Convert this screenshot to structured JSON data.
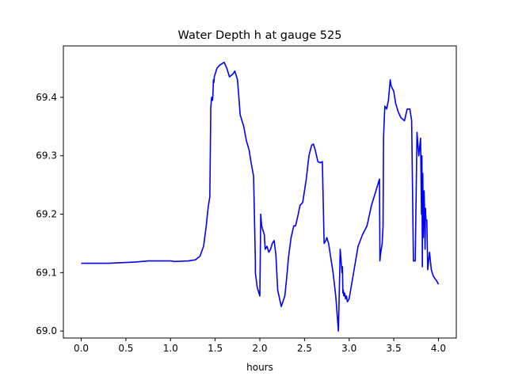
{
  "chart_data": {
    "type": "line",
    "title": "Water Depth h at gauge 525",
    "xlabel": "hours",
    "ylabel": "",
    "xlim": [
      -0.2,
      4.2
    ],
    "ylim": [
      68.988,
      69.488
    ],
    "xticks": [
      {
        "value": 0.0,
        "label": "0.0"
      },
      {
        "value": 0.5,
        "label": "0.5"
      },
      {
        "value": 1.0,
        "label": "1.0"
      },
      {
        "value": 1.5,
        "label": "1.5"
      },
      {
        "value": 2.0,
        "label": "2.0"
      },
      {
        "value": 2.5,
        "label": "2.5"
      },
      {
        "value": 3.0,
        "label": "3.0"
      },
      {
        "value": 3.5,
        "label": "3.5"
      },
      {
        "value": 4.0,
        "label": "4.0"
      }
    ],
    "yticks": [
      {
        "value": 69.0,
        "label": "69.0"
      },
      {
        "value": 69.1,
        "label": "69.1"
      },
      {
        "value": 69.2,
        "label": "69.2"
      },
      {
        "value": 69.3,
        "label": "69.3"
      },
      {
        "value": 69.4,
        "label": "69.4"
      }
    ],
    "grid": false,
    "legend": "none",
    "series": [
      {
        "color": "#0000ff",
        "x": [
          0.0,
          0.3,
          0.6,
          0.75,
          1.0,
          1.05,
          1.2,
          1.28,
          1.33,
          1.37,
          1.4,
          1.42,
          1.44,
          1.45,
          1.45,
          1.46,
          1.47,
          1.475,
          1.48,
          1.485,
          1.49,
          1.5,
          1.52,
          1.55,
          1.6,
          1.63,
          1.66,
          1.7,
          1.72,
          1.75,
          1.78,
          1.82,
          1.85,
          1.88,
          1.9,
          1.93,
          1.95,
          1.95,
          1.97,
          1.99,
          2.0,
          2.01,
          2.02,
          2.03,
          2.05,
          2.06,
          2.08,
          2.1,
          2.12,
          2.14,
          2.16,
          2.18,
          2.2,
          2.24,
          2.28,
          2.3,
          2.32,
          2.35,
          2.38,
          2.4,
          2.43,
          2.45,
          2.48,
          2.5,
          2.52,
          2.55,
          2.58,
          2.6,
          2.62,
          2.65,
          2.68,
          2.7,
          2.72,
          2.74,
          2.75,
          2.75,
          2.77,
          2.79,
          2.82,
          2.85,
          2.88,
          2.9,
          2.92,
          2.925,
          2.93,
          2.935,
          2.94,
          2.95,
          2.96,
          2.97,
          2.98,
          3.0,
          3.05,
          3.1,
          3.15,
          3.2,
          3.25,
          3.3,
          3.32,
          3.34,
          3.345,
          3.35,
          3.37,
          3.38,
          3.385,
          3.39,
          3.4,
          3.42,
          3.44,
          3.46,
          3.47,
          3.5,
          3.52,
          3.55,
          3.58,
          3.62,
          3.65,
          3.68,
          3.7,
          3.72,
          3.74,
          3.76,
          3.78,
          3.8,
          3.81,
          3.815,
          3.82,
          3.825,
          3.83,
          3.84,
          3.845,
          3.85,
          3.855,
          3.86,
          3.87,
          3.88,
          3.9,
          3.91,
          3.92,
          3.93,
          3.94,
          3.95,
          3.96,
          3.97,
          3.98,
          3.99,
          4.0
        ],
        "y": [
          69.116,
          69.116,
          69.118,
          69.12,
          69.12,
          69.119,
          69.12,
          69.122,
          69.128,
          69.145,
          69.18,
          69.21,
          69.23,
          69.37,
          69.38,
          69.4,
          69.395,
          69.405,
          69.43,
          69.425,
          69.435,
          69.44,
          69.45,
          69.455,
          69.46,
          69.45,
          69.435,
          69.44,
          69.445,
          69.43,
          69.37,
          69.35,
          69.325,
          69.31,
          69.29,
          69.265,
          69.12,
          69.1,
          69.075,
          69.065,
          69.06,
          69.2,
          69.18,
          69.175,
          69.165,
          69.14,
          69.145,
          69.135,
          69.14,
          69.15,
          69.155,
          69.13,
          69.07,
          69.042,
          69.06,
          69.09,
          69.125,
          69.16,
          69.18,
          69.18,
          69.2,
          69.215,
          69.22,
          69.24,
          69.26,
          69.3,
          69.318,
          69.32,
          69.31,
          69.29,
          69.288,
          69.29,
          69.15,
          69.155,
          69.16,
          69.16,
          69.15,
          69.13,
          69.1,
          69.06,
          69.0,
          69.14,
          69.1,
          69.11,
          69.065,
          69.07,
          69.06,
          69.065,
          69.055,
          69.06,
          69.05,
          69.055,
          69.1,
          69.145,
          69.165,
          69.18,
          69.215,
          69.24,
          69.25,
          69.26,
          69.12,
          69.13,
          69.15,
          69.18,
          69.33,
          69.35,
          69.385,
          69.38,
          69.395,
          69.43,
          69.42,
          69.41,
          69.39,
          69.375,
          69.365,
          69.36,
          69.38,
          69.38,
          69.36,
          69.12,
          69.12,
          69.34,
          69.3,
          69.33,
          69.2,
          69.3,
          69.11,
          69.27,
          69.16,
          69.24,
          69.2,
          69.14,
          69.21,
          69.19,
          69.19,
          69.105,
          69.135,
          69.12,
          69.105,
          69.1,
          69.095,
          69.092,
          69.09,
          69.088,
          69.086,
          69.083,
          69.08
        ]
      }
    ]
  }
}
